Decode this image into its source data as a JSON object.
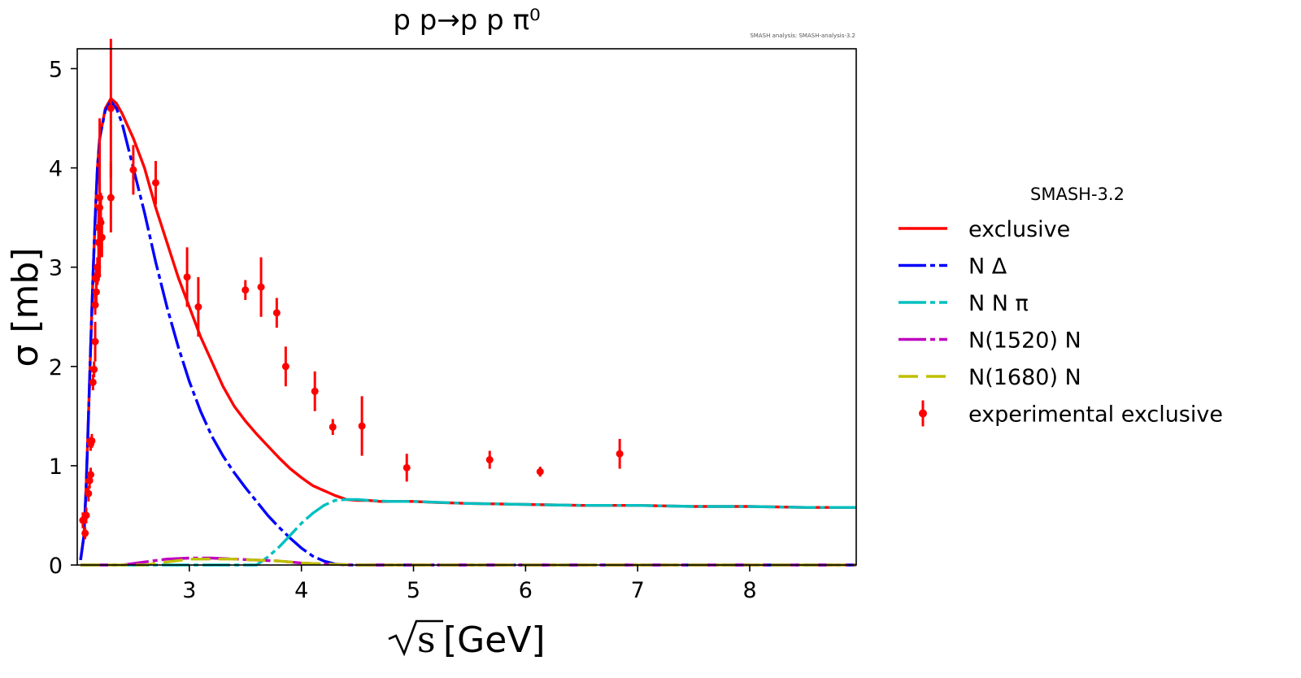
{
  "chart_data": {
    "type": "line",
    "title": "p p→p p π⁰",
    "watermark": "SMASH analysis: SMASH-analysis-3.2",
    "xlabel": "s",
    "xlabel_unit": "[GeV]",
    "ylabel": "σ [mb]",
    "xlim": [
      2.0,
      8.95
    ],
    "ylim": [
      0,
      5.2
    ],
    "xticks": [
      3,
      4,
      5,
      6,
      7,
      8
    ],
    "yticks": [
      0,
      1,
      2,
      3,
      4,
      5
    ],
    "grid": false,
    "legend": {
      "placement": "right, outside plot",
      "title": "SMASH-3.2",
      "entries": [
        {
          "label": "exclusive",
          "color": "#ff0000",
          "style": "solid"
        },
        {
          "label": "N Δ",
          "color": "#0000ff",
          "style": "dashdot"
        },
        {
          "label": "N N π",
          "color": "#00bfbf",
          "style": "dashdot"
        },
        {
          "label": "N(1520) N",
          "color": "#bf00bf",
          "style": "dashdot"
        },
        {
          "label": "N(1680) N",
          "color": "#bfbf00",
          "style": "dashed"
        },
        {
          "label": "experimental exclusive",
          "color": "#ff0000",
          "style": "errorbar"
        }
      ]
    },
    "series": [
      {
        "name": "exclusive",
        "color": "#ff0000",
        "x": [
          2.03,
          2.06,
          2.08,
          2.1,
          2.12,
          2.14,
          2.16,
          2.18,
          2.2,
          2.25,
          2.3,
          2.35,
          2.4,
          2.5,
          2.6,
          2.7,
          2.8,
          2.9,
          3.0,
          3.1,
          3.2,
          3.3,
          3.4,
          3.5,
          3.6,
          3.7,
          3.8,
          3.9,
          4.0,
          4.1,
          4.2,
          4.3,
          4.4,
          4.5,
          4.6,
          4.7,
          4.8,
          4.9,
          5.0,
          5.2,
          5.5,
          6.0,
          6.5,
          7.0,
          7.5,
          8.0,
          8.5,
          8.95
        ],
        "y": [
          0.05,
          0.3,
          0.8,
          1.5,
          2.2,
          2.9,
          3.5,
          4.0,
          4.3,
          4.6,
          4.7,
          4.65,
          4.55,
          4.3,
          4.0,
          3.6,
          3.25,
          2.9,
          2.6,
          2.3,
          2.05,
          1.8,
          1.6,
          1.45,
          1.32,
          1.2,
          1.08,
          0.97,
          0.88,
          0.8,
          0.75,
          0.7,
          0.66,
          0.65,
          0.65,
          0.64,
          0.64,
          0.64,
          0.64,
          0.63,
          0.62,
          0.61,
          0.6,
          0.6,
          0.59,
          0.59,
          0.58,
          0.58
        ]
      },
      {
        "name": "N Δ",
        "color": "#0000ff",
        "x": [
          2.03,
          2.06,
          2.08,
          2.1,
          2.12,
          2.14,
          2.16,
          2.18,
          2.2,
          2.25,
          2.3,
          2.35,
          2.4,
          2.5,
          2.6,
          2.7,
          2.8,
          2.9,
          3.0,
          3.1,
          3.2,
          3.3,
          3.4,
          3.5,
          3.6,
          3.7,
          3.8,
          3.9,
          4.0,
          4.1,
          4.2,
          4.3,
          4.4,
          4.5,
          5.0,
          6.0,
          7.0,
          8.0,
          8.95
        ],
        "y": [
          0.05,
          0.3,
          0.8,
          1.5,
          2.2,
          2.9,
          3.5,
          4.0,
          4.3,
          4.58,
          4.67,
          4.6,
          4.45,
          4.0,
          3.55,
          3.05,
          2.6,
          2.2,
          1.85,
          1.55,
          1.3,
          1.1,
          0.93,
          0.78,
          0.64,
          0.5,
          0.38,
          0.27,
          0.17,
          0.09,
          0.04,
          0.01,
          0.0,
          0.0,
          0.0,
          0.0,
          0.0,
          0.0,
          0.0
        ]
      },
      {
        "name": "N N π",
        "color": "#00bfbf",
        "x": [
          2.03,
          3.0,
          3.6,
          3.7,
          3.8,
          3.9,
          4.0,
          4.1,
          4.2,
          4.3,
          4.4,
          4.5,
          4.6,
          4.8,
          5.0,
          5.5,
          6.0,
          6.5,
          7.0,
          7.5,
          8.0,
          8.5,
          8.95
        ],
        "y": [
          0.0,
          0.0,
          0.0,
          0.08,
          0.18,
          0.3,
          0.42,
          0.52,
          0.6,
          0.65,
          0.66,
          0.66,
          0.65,
          0.64,
          0.64,
          0.62,
          0.61,
          0.6,
          0.6,
          0.59,
          0.59,
          0.58,
          0.58
        ]
      },
      {
        "name": "N(1520) N",
        "color": "#bf00bf",
        "x": [
          2.03,
          2.4,
          2.6,
          2.8,
          3.0,
          3.2,
          3.4,
          3.6,
          3.8,
          4.0,
          4.2,
          4.5,
          5.0,
          6.0,
          7.0,
          8.0,
          8.95
        ],
        "y": [
          0.0,
          0.0,
          0.03,
          0.06,
          0.07,
          0.07,
          0.06,
          0.05,
          0.04,
          0.02,
          0.01,
          0.0,
          0.0,
          0.0,
          0.0,
          0.0,
          0.0
        ]
      },
      {
        "name": "N(1680) N",
        "color": "#bfbf00",
        "x": [
          2.03,
          2.6,
          2.8,
          3.0,
          3.2,
          3.4,
          3.6,
          3.8,
          4.0,
          4.2,
          4.5,
          5.0,
          6.0,
          7.0,
          8.0,
          8.95
        ],
        "y": [
          0.0,
          0.0,
          0.03,
          0.06,
          0.06,
          0.06,
          0.05,
          0.04,
          0.02,
          0.01,
          0.0,
          0.0,
          0.0,
          0.0,
          0.0,
          0.0
        ]
      }
    ],
    "experimental": {
      "name": "experimental exclusive",
      "color": "#ff0000",
      "points": [
        {
          "x": 2.05,
          "y": 0.45,
          "err": 0.08
        },
        {
          "x": 2.07,
          "y": 0.32,
          "err": 0.06
        },
        {
          "x": 2.08,
          "y": 0.5,
          "err": 0.08
        },
        {
          "x": 2.1,
          "y": 0.72,
          "err": 0.08
        },
        {
          "x": 2.11,
          "y": 0.85,
          "err": 0.08
        },
        {
          "x": 2.12,
          "y": 0.91,
          "err": 0.07
        },
        {
          "x": 2.12,
          "y": 1.22,
          "err": 0.07
        },
        {
          "x": 2.13,
          "y": 1.25,
          "err": 0.07
        },
        {
          "x": 2.14,
          "y": 1.84,
          "err": 0.08
        },
        {
          "x": 2.15,
          "y": 1.97,
          "err": 0.08
        },
        {
          "x": 2.16,
          "y": 2.25,
          "err": 0.2
        },
        {
          "x": 2.16,
          "y": 2.62,
          "err": 0.1
        },
        {
          "x": 2.17,
          "y": 2.75,
          "err": 0.1
        },
        {
          "x": 2.17,
          "y": 2.88,
          "err": 0.1
        },
        {
          "x": 2.18,
          "y": 2.92,
          "err": 0.1
        },
        {
          "x": 2.18,
          "y": 3.0,
          "err": 0.1
        },
        {
          "x": 2.19,
          "y": 3.25,
          "err": 0.15
        },
        {
          "x": 2.19,
          "y": 3.4,
          "err": 0.2
        },
        {
          "x": 2.2,
          "y": 3.6,
          "err": 0.25
        },
        {
          "x": 2.2,
          "y": 3.7,
          "err": 0.8
        },
        {
          "x": 2.21,
          "y": 3.45,
          "err": 0.3
        },
        {
          "x": 2.22,
          "y": 3.3,
          "err": 0.2
        },
        {
          "x": 2.3,
          "y": 4.6,
          "err": 0.7
        },
        {
          "x": 2.3,
          "y": 3.7,
          "err": 0.35
        },
        {
          "x": 2.5,
          "y": 3.98,
          "err": 0.25
        },
        {
          "x": 2.7,
          "y": 3.85,
          "err": 0.22
        },
        {
          "x": 2.98,
          "y": 2.9,
          "err": 0.3
        },
        {
          "x": 3.08,
          "y": 2.6,
          "err": 0.3
        },
        {
          "x": 3.5,
          "y": 2.77,
          "err": 0.1
        },
        {
          "x": 3.64,
          "y": 2.8,
          "err": 0.3
        },
        {
          "x": 3.78,
          "y": 2.54,
          "err": 0.15
        },
        {
          "x": 3.86,
          "y": 2.0,
          "err": 0.2
        },
        {
          "x": 4.12,
          "y": 1.75,
          "err": 0.2
        },
        {
          "x": 4.28,
          "y": 1.39,
          "err": 0.08
        },
        {
          "x": 4.54,
          "y": 1.4,
          "err": 0.3
        },
        {
          "x": 4.94,
          "y": 0.98,
          "err": 0.14
        },
        {
          "x": 5.68,
          "y": 1.06,
          "err": 0.09
        },
        {
          "x": 6.13,
          "y": 0.94,
          "err": 0.05
        },
        {
          "x": 6.84,
          "y": 1.12,
          "err": 0.15
        }
      ]
    }
  }
}
